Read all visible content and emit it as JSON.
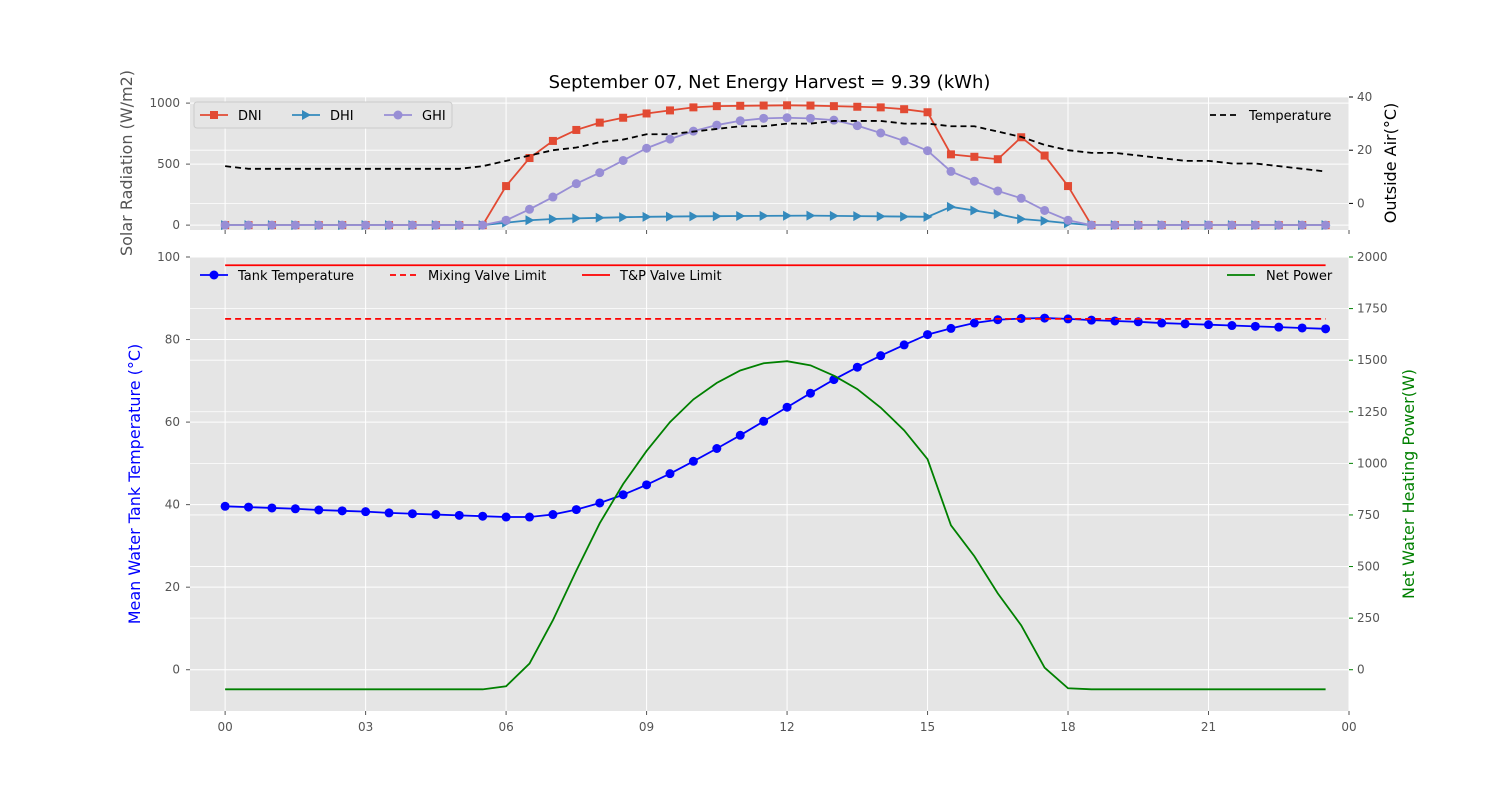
{
  "chart_data": [
    {
      "type": "line",
      "title": "September 07,  Net Energy Harvest = 9.39 (kWh)",
      "ylabel": "Solar Radiation (W/m2)",
      "ylim": [
        -40,
        1050
      ],
      "yticks": [
        "0",
        "500",
        "1000"
      ],
      "y2label": "Outside Air(°C)",
      "y2lim": [
        -10,
        40
      ],
      "y2ticks": [
        "0",
        "20",
        "40"
      ],
      "xlim": [
        -0.75,
        24.0
      ],
      "x": [
        0,
        0.5,
        1,
        1.5,
        2,
        2.5,
        3,
        3.5,
        4,
        4.5,
        5,
        5.5,
        6,
        6.5,
        7,
        7.5,
        8,
        8.5,
        9,
        9.5,
        10,
        10.5,
        11,
        11.5,
        12,
        12.5,
        13,
        13.5,
        14,
        14.5,
        15,
        15.5,
        16,
        16.5,
        17,
        17.5,
        18,
        18.5,
        19,
        19.5,
        20,
        20.5,
        21,
        21.5,
        22,
        22.5,
        23,
        23.5
      ],
      "grid": true,
      "series": [
        {
          "name": "DNI",
          "axis": "left",
          "color": "#e24a33",
          "marker": "square",
          "dash": "",
          "values": [
            0,
            0,
            0,
            0,
            0,
            0,
            0,
            0,
            0,
            0,
            0,
            0,
            320,
            550,
            690,
            780,
            840,
            880,
            915,
            940,
            965,
            975,
            978,
            980,
            982,
            980,
            975,
            970,
            965,
            950,
            925,
            580,
            560,
            540,
            720,
            570,
            320,
            0,
            0,
            0,
            0,
            0,
            0,
            0,
            0,
            0,
            0,
            0
          ]
        },
        {
          "name": "DHI",
          "axis": "left",
          "color": "#348abd",
          "marker": "triangle-right",
          "dash": "",
          "values": [
            0,
            0,
            0,
            0,
            0,
            0,
            0,
            0,
            0,
            0,
            0,
            0,
            20,
            40,
            50,
            55,
            60,
            65,
            68,
            70,
            72,
            73,
            75,
            76,
            77,
            78,
            76,
            74,
            72,
            70,
            68,
            150,
            120,
            90,
            50,
            35,
            15,
            0,
            0,
            0,
            0,
            0,
            0,
            0,
            0,
            0,
            0,
            0
          ]
        },
        {
          "name": "GHI",
          "axis": "left",
          "color": "#988ed5",
          "marker": "circle",
          "dash": "",
          "values": [
            0,
            0,
            0,
            0,
            0,
            0,
            0,
            0,
            0,
            0,
            0,
            0,
            40,
            130,
            230,
            340,
            430,
            530,
            630,
            705,
            770,
            820,
            855,
            875,
            880,
            875,
            860,
            815,
            755,
            690,
            610,
            440,
            360,
            280,
            220,
            120,
            40,
            0,
            0,
            0,
            0,
            0,
            0,
            0,
            0,
            0,
            0,
            0
          ]
        },
        {
          "name": "Temperature",
          "axis": "right",
          "color": "#000000",
          "marker": "none",
          "dash": "6,4",
          "values": [
            14,
            13,
            13,
            13,
            13,
            13,
            13,
            13,
            13,
            13,
            13,
            14,
            16,
            18,
            20,
            21,
            23,
            24,
            26,
            26,
            27,
            28,
            29,
            29,
            30,
            30,
            31,
            31,
            31,
            30,
            30,
            29,
            29,
            27,
            25,
            22,
            20,
            19,
            19,
            18,
            17,
            16,
            16,
            15,
            15,
            14,
            13,
            12
          ]
        }
      ]
    },
    {
      "type": "line",
      "ylabel": "Mean Water Tank Temperature (°C)",
      "ylim": [
        -10,
        100
      ],
      "yticks": [
        "0",
        "20",
        "40",
        "60",
        "80",
        "100"
      ],
      "y2label": "Net Water Heating Power(W)",
      "y2lim": [
        -200,
        2000
      ],
      "y2ticks": [
        "0",
        "250",
        "500",
        "750",
        "1000",
        "1250",
        "1500",
        "1750",
        "2000"
      ],
      "xlim": [
        -0.75,
        24.0
      ],
      "xticks": [
        "00",
        "03",
        "06",
        "09",
        "12",
        "15",
        "18",
        "21",
        "00"
      ],
      "x": [
        0,
        0.5,
        1,
        1.5,
        2,
        2.5,
        3,
        3.5,
        4,
        4.5,
        5,
        5.5,
        6,
        6.5,
        7,
        7.5,
        8,
        8.5,
        9,
        9.5,
        10,
        10.5,
        11,
        11.5,
        12,
        12.5,
        13,
        13.5,
        14,
        14.5,
        15,
        15.5,
        16,
        16.5,
        17,
        17.5,
        18,
        18.5,
        19,
        19.5,
        20,
        20.5,
        21,
        21.5,
        22,
        22.5,
        23,
        23.5
      ],
      "grid": true,
      "series": [
        {
          "name": "Tank Temperature",
          "axis": "left",
          "color": "#0000ff",
          "marker": "circle",
          "dash": "",
          "values": [
            39.6,
            39.4,
            39.2,
            39.0,
            38.7,
            38.5,
            38.3,
            38.0,
            37.8,
            37.6,
            37.4,
            37.2,
            37.0,
            37.0,
            37.6,
            38.8,
            40.4,
            42.4,
            44.8,
            47.5,
            50.5,
            53.6,
            56.8,
            60.2,
            63.6,
            67.0,
            70.3,
            73.3,
            76.1,
            78.7,
            81.2,
            82.7,
            84.0,
            84.8,
            85.1,
            85.2,
            85.0,
            84.7,
            84.5,
            84.3,
            84.0,
            83.8,
            83.6,
            83.4,
            83.2,
            83.0,
            82.8,
            82.6
          ]
        },
        {
          "name": "Mixing Valve Limit",
          "axis": "left",
          "color": "#ff0000",
          "marker": "none",
          "dash": "6,4",
          "values": [
            85,
            85,
            85,
            85,
            85,
            85,
            85,
            85,
            85,
            85,
            85,
            85,
            85,
            85,
            85,
            85,
            85,
            85,
            85,
            85,
            85,
            85,
            85,
            85,
            85,
            85,
            85,
            85,
            85,
            85,
            85,
            85,
            85,
            85,
            85,
            85,
            85,
            85,
            85,
            85,
            85,
            85,
            85,
            85,
            85,
            85,
            85,
            85
          ]
        },
        {
          "name": "T&P Valve Limit",
          "axis": "left",
          "color": "#ff0000",
          "marker": "none",
          "dash": "",
          "values": [
            98,
            98,
            98,
            98,
            98,
            98,
            98,
            98,
            98,
            98,
            98,
            98,
            98,
            98,
            98,
            98,
            98,
            98,
            98,
            98,
            98,
            98,
            98,
            98,
            98,
            98,
            98,
            98,
            98,
            98,
            98,
            98,
            98,
            98,
            98,
            98,
            98,
            98,
            98,
            98,
            98,
            98,
            98,
            98,
            98,
            98,
            98,
            98
          ]
        },
        {
          "name": "Net Power",
          "axis": "right",
          "color": "#008000",
          "marker": "none",
          "dash": "",
          "values": [
            -95,
            -95,
            -95,
            -95,
            -95,
            -95,
            -95,
            -95,
            -95,
            -95,
            -95,
            -95,
            -80,
            30,
            240,
            480,
            710,
            900,
            1060,
            1200,
            1310,
            1390,
            1450,
            1485,
            1495,
            1475,
            1425,
            1360,
            1270,
            1160,
            1020,
            700,
            550,
            370,
            215,
            10,
            -90,
            -95,
            -95,
            -95,
            -95,
            -95,
            -95,
            -95,
            -95,
            -95,
            -95,
            -95
          ]
        }
      ]
    }
  ]
}
